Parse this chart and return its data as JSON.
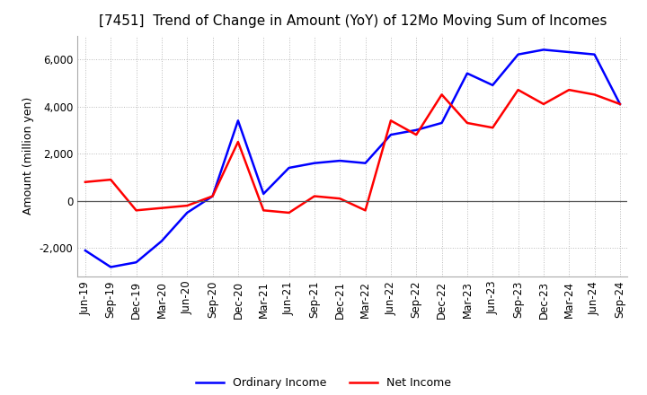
{
  "title": "[7451]  Trend of Change in Amount (YoY) of 12Mo Moving Sum of Incomes",
  "ylabel": "Amount (million yen)",
  "ylim": [
    -3200,
    7000
  ],
  "yticks": [
    -2000,
    0,
    2000,
    4000,
    6000
  ],
  "x_labels": [
    "Jun-19",
    "Sep-19",
    "Dec-19",
    "Mar-20",
    "Jun-20",
    "Sep-20",
    "Dec-20",
    "Mar-21",
    "Jun-21",
    "Sep-21",
    "Dec-21",
    "Mar-22",
    "Jun-22",
    "Sep-22",
    "Dec-22",
    "Mar-23",
    "Jun-23",
    "Sep-23",
    "Dec-23",
    "Mar-24",
    "Jun-24",
    "Sep-24"
  ],
  "ordinary_income": [
    -2100,
    -2800,
    -2600,
    -1700,
    -500,
    200,
    3400,
    300,
    1400,
    1600,
    1700,
    1600,
    2800,
    3000,
    3300,
    5400,
    4900,
    6200,
    6400,
    6300,
    6200,
    4100
  ],
  "net_income": [
    800,
    900,
    -400,
    -300,
    -200,
    200,
    2500,
    -400,
    -500,
    200,
    100,
    -400,
    3400,
    2800,
    4500,
    3300,
    3100,
    4700,
    4100,
    4700,
    4500,
    4100
  ],
  "ordinary_color": "#0000ff",
  "net_color": "#ff0000",
  "grid_color": "#bbbbbb",
  "background_color": "#ffffff",
  "title_fontsize": 11,
  "label_fontsize": 9,
  "tick_fontsize": 8.5
}
